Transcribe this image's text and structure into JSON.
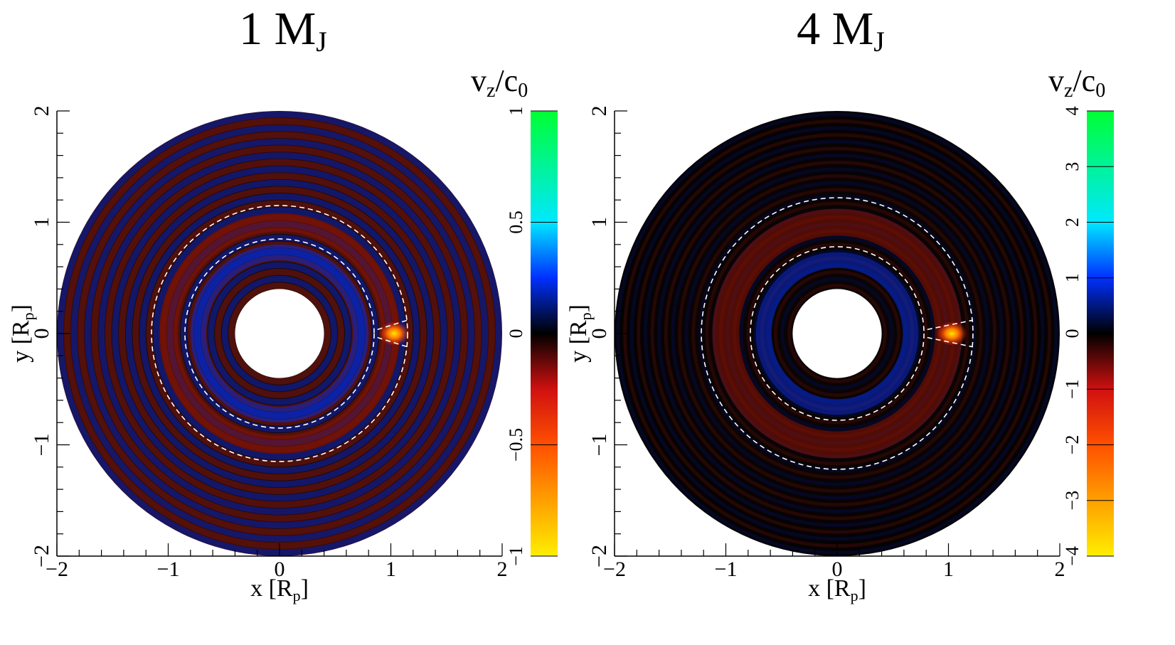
{
  "chart_data": [
    {
      "type": "heatmap",
      "title": "1 M",
      "title_sub": "J",
      "xlabel": "x [R",
      "xlabel_sub": "p",
      "xlabel_end": "]",
      "ylabel": "y [R",
      "ylabel_sub": "p",
      "ylabel_end": "]",
      "xlim": [
        -2,
        2
      ],
      "ylim": [
        -2,
        2
      ],
      "x_ticks": [
        "−2",
        "−1",
        "0",
        "1",
        "2"
      ],
      "y_ticks": [
        "−2",
        "−1",
        "0",
        "1",
        "2"
      ],
      "inner_radius": 0.4,
      "outer_radius": 2.0,
      "gap_inner_radius": 0.85,
      "gap_outer_radius": 1.15,
      "colorbar": {
        "label": "v",
        "label_sub": "z",
        "label_end": "/c",
        "label_sub2": "0",
        "range": [
          -1,
          1
        ],
        "ticks": [
          "1",
          "0.5",
          "0",
          "−0.5",
          "−1"
        ]
      }
    },
    {
      "type": "heatmap",
      "title": "4 M",
      "title_sub": "J",
      "xlabel": "x [R",
      "xlabel_sub": "p",
      "xlabel_end": "]",
      "ylabel": "y [R",
      "ylabel_sub": "p",
      "ylabel_end": "]",
      "xlim": [
        -2,
        2
      ],
      "ylim": [
        -2,
        2
      ],
      "x_ticks": [
        "−2",
        "−1",
        "0",
        "1",
        "2"
      ],
      "y_ticks": [
        "−2",
        "−1",
        "0",
        "1",
        "2"
      ],
      "inner_radius": 0.4,
      "outer_radius": 2.0,
      "gap_inner_radius": 0.78,
      "gap_outer_radius": 1.22,
      "colorbar": {
        "label": "v",
        "label_sub": "z",
        "label_end": "/c",
        "label_sub2": "0",
        "range": [
          -4,
          4
        ],
        "ticks": [
          "4",
          "3",
          "2",
          "1",
          "0",
          "−1",
          "−2",
          "−3",
          "−4"
        ]
      }
    }
  ]
}
